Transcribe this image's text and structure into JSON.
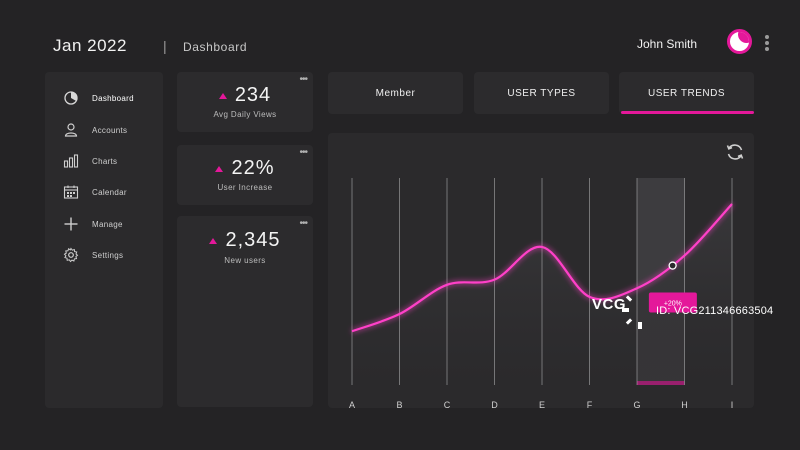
{
  "header": {
    "date": "Jan 2022",
    "separator": "|",
    "page": "Dashboard",
    "user_name": "John Smith"
  },
  "sidebar": {
    "items": [
      {
        "label": "Dashboard",
        "icon": "pie-chart-icon",
        "active": true
      },
      {
        "label": "Accounts",
        "icon": "user-icon",
        "active": false
      },
      {
        "label": "Charts",
        "icon": "bar-chart-icon",
        "active": false
      },
      {
        "label": "Calendar",
        "icon": "calendar-icon",
        "active": false
      },
      {
        "label": "Manage",
        "icon": "plus-icon",
        "active": false
      },
      {
        "label": "Settings",
        "icon": "gear-icon",
        "active": false
      }
    ]
  },
  "stats": [
    {
      "value": "234",
      "label": "Avg Daily Views",
      "menu": "•••"
    },
    {
      "value": "22%",
      "label": "User Increase",
      "menu": "•••"
    },
    {
      "value": "2,345",
      "label": "New users",
      "menu": "•••"
    }
  ],
  "tabs": [
    {
      "label": "Member",
      "active": false
    },
    {
      "label": "USER TYPES",
      "active": false
    },
    {
      "label": "USER TRENDS",
      "active": true
    }
  ],
  "chart_data": {
    "type": "line",
    "categories": [
      "A",
      "B",
      "C",
      "D",
      "E",
      "F",
      "G",
      "H",
      "I"
    ],
    "values": [
      8,
      18,
      35,
      38,
      57,
      28,
      33,
      52,
      82
    ],
    "highlighted_category": "H",
    "annotation": "+20%",
    "ylim": [
      0,
      100
    ],
    "grid": true,
    "line_color": "#ff3fc8"
  },
  "watermark": {
    "logo": "VCG",
    "id": "ID: VCG211346663504"
  },
  "colors": {
    "accent": "#e4189a",
    "background": "#242325",
    "panel": "#2b2a2c"
  }
}
